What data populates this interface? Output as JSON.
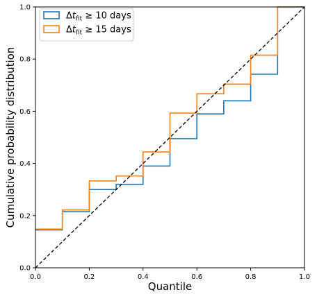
{
  "chart_data": {
    "type": "line",
    "step": "post",
    "xlabel": "Quantile",
    "ylabel": "Cumulative probability distribution",
    "xlim": [
      0.0,
      1.0
    ],
    "ylim": [
      0.0,
      1.0
    ],
    "xticks": [
      "0.0",
      "0.2",
      "0.4",
      "0.6",
      "0.8",
      "1.0"
    ],
    "yticks": [
      "0.0",
      "0.2",
      "0.4",
      "0.6",
      "0.8",
      "1.0"
    ],
    "grid": false,
    "legend_position": "top-left",
    "reference_line": {
      "style": "dashed",
      "color": "#000000",
      "x": [
        0.0,
        1.0
      ],
      "y": [
        0.0,
        1.0
      ]
    },
    "series": [
      {
        "name": "Δt_fit ≥ 10 days",
        "color": "#1f77b4",
        "x": [
          0.0,
          0.1,
          0.2,
          0.3,
          0.4,
          0.5,
          0.6,
          0.7,
          0.8,
          0.9,
          1.0
        ],
        "y": [
          0.145,
          0.215,
          0.3,
          0.32,
          0.39,
          0.495,
          0.59,
          0.64,
          0.742,
          1.0,
          1.0
        ]
      },
      {
        "name": "Δt_fit ≥ 15 days",
        "color": "#ff7f0e",
        "x": [
          0.0,
          0.1,
          0.2,
          0.3,
          0.4,
          0.5,
          0.6,
          0.7,
          0.8,
          0.9,
          1.0
        ],
        "y": [
          0.148,
          0.222,
          0.333,
          0.352,
          0.444,
          0.593,
          0.667,
          0.704,
          0.815,
          1.0,
          1.0
        ]
      }
    ],
    "legend": [
      {
        "prefix": "Δ",
        "var": "t",
        "sub": "fit",
        "suffix": " ≥ 10 days"
      },
      {
        "prefix": "Δ",
        "var": "t",
        "sub": "fit",
        "suffix": " ≥ 15 days"
      }
    ]
  }
}
